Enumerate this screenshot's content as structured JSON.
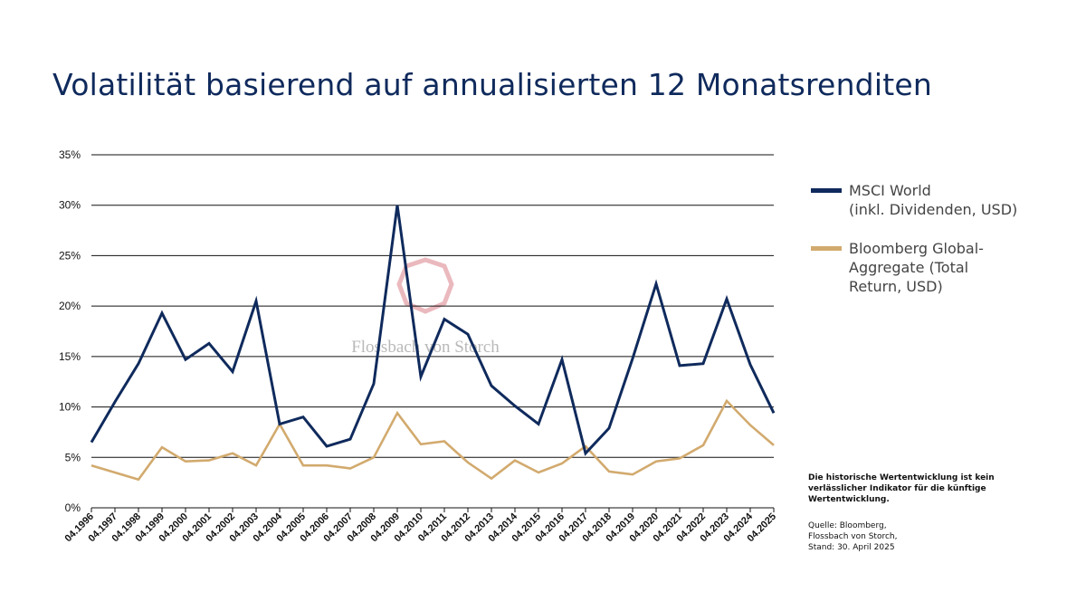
{
  "title": "Volatilität basierend auf annualisierten 12 Monatsrenditen",
  "watermark": "Flossbach von Storch",
  "note": "Die historische Wertentwicklung ist kein verlässlicher Indikator für die künftige Wertentwicklung.",
  "source": [
    "Quelle: Bloomberg,",
    "Flossbach von Storch,",
    "Stand: 30. April 2025"
  ],
  "colors": {
    "msci": "#0f2a5c",
    "bloomberg": "#d2aa6e",
    "grid": "#111111",
    "watermark": "#e3a1a8"
  },
  "chart_data": {
    "type": "line",
    "title": "Volatilität basierend auf annualisierten 12 Monatsrenditen",
    "xlabel": "",
    "ylabel": "",
    "ylim": [
      0,
      35
    ],
    "yticks": [
      "0%",
      "5%",
      "10%",
      "15%",
      "20%",
      "25%",
      "30%",
      "35%"
    ],
    "grid": "horizontal",
    "legend_position": "right",
    "categories": [
      "04.1996",
      "04.1997",
      "04.1998",
      "04.1999",
      "04.2000",
      "04.2001",
      "04.2002",
      "04.2003",
      "04.2004",
      "04.2005",
      "04.2006",
      "04.2007",
      "04.2008",
      "04.2009",
      "04.2010",
      "04.2011",
      "04.2012",
      "04.2013",
      "04.2014",
      "04.2015",
      "04.2016",
      "04.2017",
      "04.2018",
      "04.2019",
      "04.2020",
      "04.2021",
      "04.2022",
      "04.2023",
      "04.2024",
      "04.2025"
    ],
    "series": [
      {
        "name": "MSCI World (inkl. Dividenden, USD)",
        "legend_lines": [
          "MSCI World",
          "(inkl. Dividenden, USD)"
        ],
        "color": "#0f2a5c",
        "values": [
          6.5,
          10.5,
          14.3,
          19.3,
          14.7,
          16.3,
          13.5,
          20.5,
          8.3,
          9.0,
          6.1,
          6.8,
          12.3,
          30.0,
          13.0,
          18.7,
          17.2,
          12.1,
          10.1,
          8.3,
          14.7,
          5.4,
          7.9,
          14.8,
          22.2,
          14.1,
          14.3,
          20.7,
          14.2,
          9.4
        ]
      },
      {
        "name": "Bloomberg Global-Aggregate (Total Return, USD)",
        "legend_lines": [
          "Bloomberg Global-",
          "Aggregate (Total",
          "Return, USD)"
        ],
        "color": "#d2aa6e",
        "values": [
          4.2,
          3.5,
          2.8,
          6.0,
          4.6,
          4.7,
          5.4,
          4.2,
          8.3,
          4.2,
          4.2,
          3.9,
          5.0,
          9.4,
          6.3,
          6.6,
          4.5,
          2.9,
          4.7,
          3.5,
          4.4,
          6.1,
          3.6,
          3.3,
          4.6,
          4.9,
          6.2,
          10.6,
          8.2,
          6.2
        ]
      }
    ]
  }
}
